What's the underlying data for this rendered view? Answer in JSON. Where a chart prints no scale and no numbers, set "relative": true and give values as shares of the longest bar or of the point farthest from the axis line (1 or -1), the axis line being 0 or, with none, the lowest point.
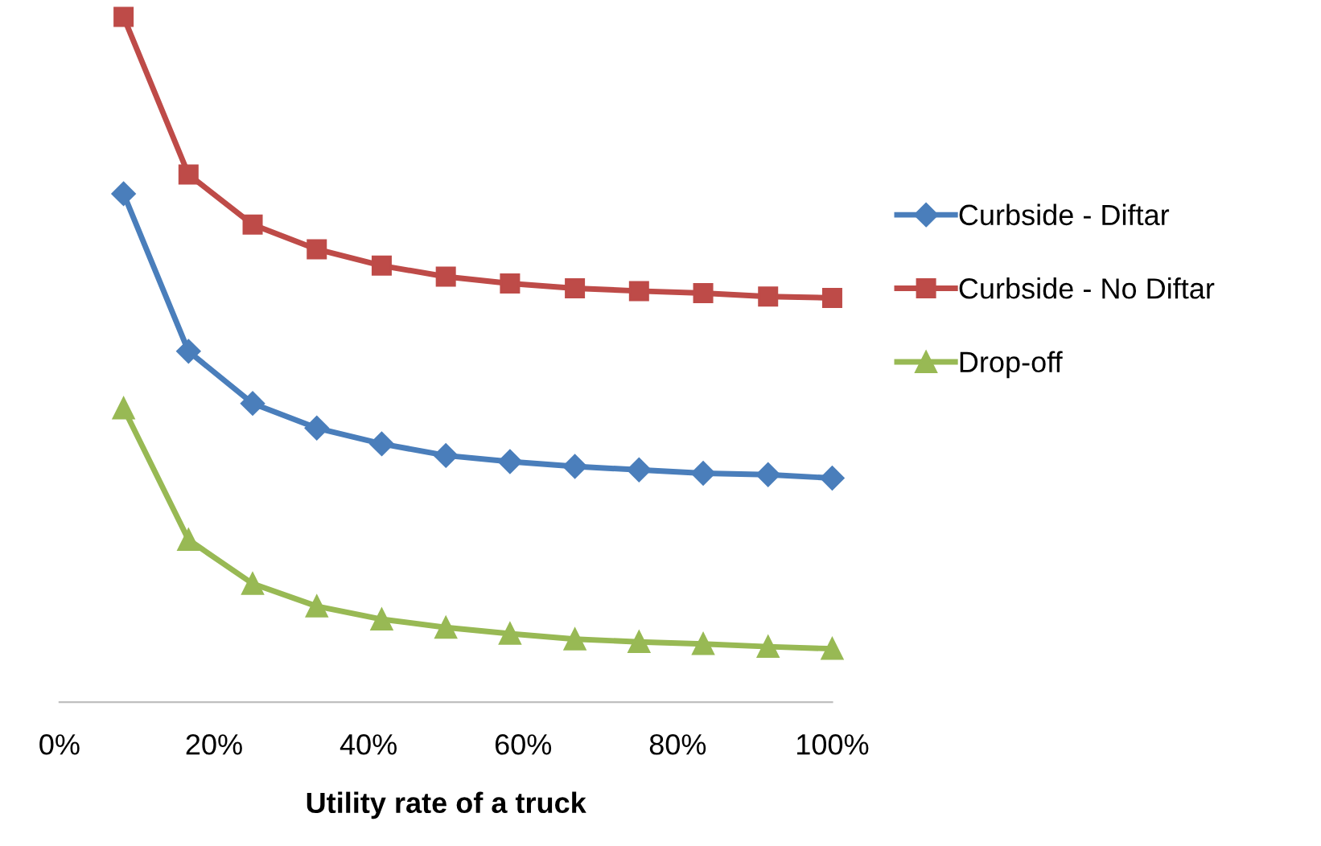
{
  "chart_data": {
    "type": "line",
    "relative": true,
    "xlabel": "Utility rate of a truck",
    "x": [
      8.3,
      16.7,
      25,
      33.3,
      41.7,
      50,
      58.3,
      66.7,
      75,
      83.3,
      91.7,
      100
    ],
    "xlim": [
      0,
      100
    ],
    "xticks": [
      {
        "value": 0,
        "label": "0%"
      },
      {
        "value": 20,
        "label": "20%"
      },
      {
        "value": 40,
        "label": "40%"
      },
      {
        "value": 60,
        "label": "60%"
      },
      {
        "value": 80,
        "label": "80%"
      },
      {
        "value": 100,
        "label": "100%"
      }
    ],
    "grid": false,
    "legend": "right",
    "tick_labels": "x",
    "line_style": "solid",
    "series": [
      {
        "name": "Curbside - Diftar",
        "color": "#4a7ebb",
        "marker": "diamond",
        "values": [
          0.742,
          0.512,
          0.436,
          0.4,
          0.377,
          0.36,
          0.351,
          0.344,
          0.339,
          0.334,
          0.332,
          0.327
        ]
      },
      {
        "name": "Curbside - No Diftar",
        "color": "#be4b48",
        "marker": "square",
        "values": [
          1.0,
          0.77,
          0.697,
          0.661,
          0.637,
          0.621,
          0.611,
          0.604,
          0.6,
          0.597,
          0.592,
          0.59
        ]
      },
      {
        "name": "Drop-off",
        "color": "#98b954",
        "marker": "triangle",
        "values": [
          0.429,
          0.237,
          0.173,
          0.14,
          0.121,
          0.109,
          0.1,
          0.092,
          0.088,
          0.085,
          0.081,
          0.078
        ]
      }
    ]
  }
}
